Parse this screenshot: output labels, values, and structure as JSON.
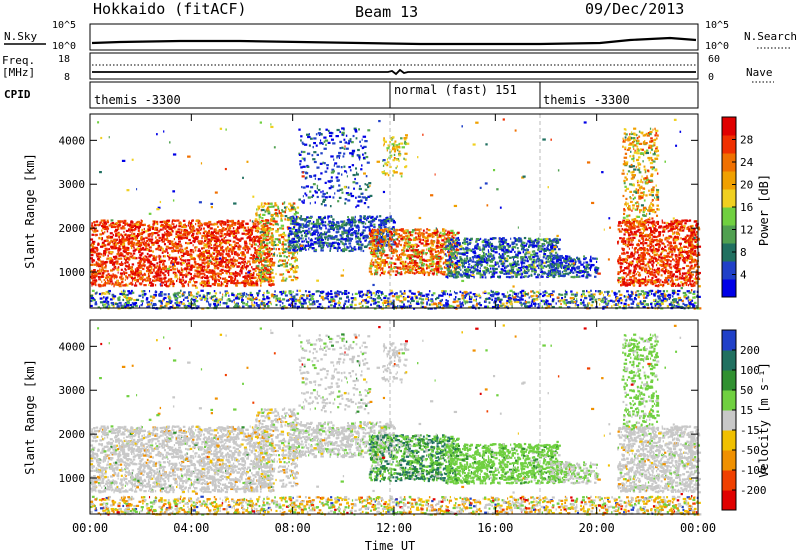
{
  "header": {
    "station": "Hokkaido (fitACF)",
    "beam": "Beam 13",
    "date": "09/Dec/2013"
  },
  "noise_panel": {
    "left_label": "N.Sky",
    "left_ticks": [
      "10^5",
      "10^0"
    ],
    "right_ticks": [
      "10^5",
      "10^0"
    ],
    "right_label": "N.Search"
  },
  "freq_panel": {
    "left_label_1": "Freq.",
    "left_label_2": "[MHz]",
    "left_ticks": [
      "18",
      "8"
    ],
    "right_ticks": [
      "60",
      "0"
    ],
    "right_label": "Nave"
  },
  "cpid_panel": {
    "label": "CPID",
    "segments": [
      "themis -3300",
      "normal (fast) 151",
      "themis -3300"
    ]
  },
  "chart_data": [
    {
      "type": "heatmap",
      "name": "power",
      "ylabel": "Slant Range [km]",
      "xlabel": "Time UT",
      "x_ticks": [
        "00:00",
        "04:00",
        "08:00",
        "12:00",
        "16:00",
        "20:00",
        "00:00"
      ],
      "xlim_hours": [
        0,
        24
      ],
      "y_ticks": [
        1000,
        2000,
        3000,
        4000
      ],
      "ylim_km": [
        180,
        4600
      ],
      "colorbar": {
        "label": "Power [dB]",
        "ticks": [
          "28",
          "24",
          "20",
          "16",
          "12",
          "8",
          "4"
        ],
        "range": [
          0,
          32
        ],
        "colors": [
          "#0000e6",
          "#2040c8",
          "#207060",
          "#50a050",
          "#70d040",
          "#f0d020",
          "#f0a000",
          "#f07000",
          "#f03000",
          "#e00000"
        ]
      }
    },
    {
      "type": "heatmap",
      "name": "velocity",
      "ylabel": "Slant Range [km]",
      "xlabel": "Time UT",
      "x_ticks": [
        "00:00",
        "04:00",
        "08:00",
        "12:00",
        "16:00",
        "20:00",
        "00:00"
      ],
      "xlim_hours": [
        0,
        24
      ],
      "y_ticks": [
        1000,
        2000,
        3000,
        4000
      ],
      "ylim_km": [
        180,
        4600
      ],
      "colorbar": {
        "label": "Velocity [m s⁻¹]",
        "ticks": [
          "200",
          "100",
          "50",
          "15",
          "-15",
          "-50",
          "-100",
          "-200"
        ],
        "range": [
          -250,
          250
        ],
        "colors": [
          "#e00000",
          "#f04000",
          "#f09000",
          "#f0c000",
          "#c8c8c8",
          "#70d040",
          "#309030",
          "#207060",
          "#2040c8"
        ]
      }
    }
  ],
  "xaxis_title": "Time UT"
}
